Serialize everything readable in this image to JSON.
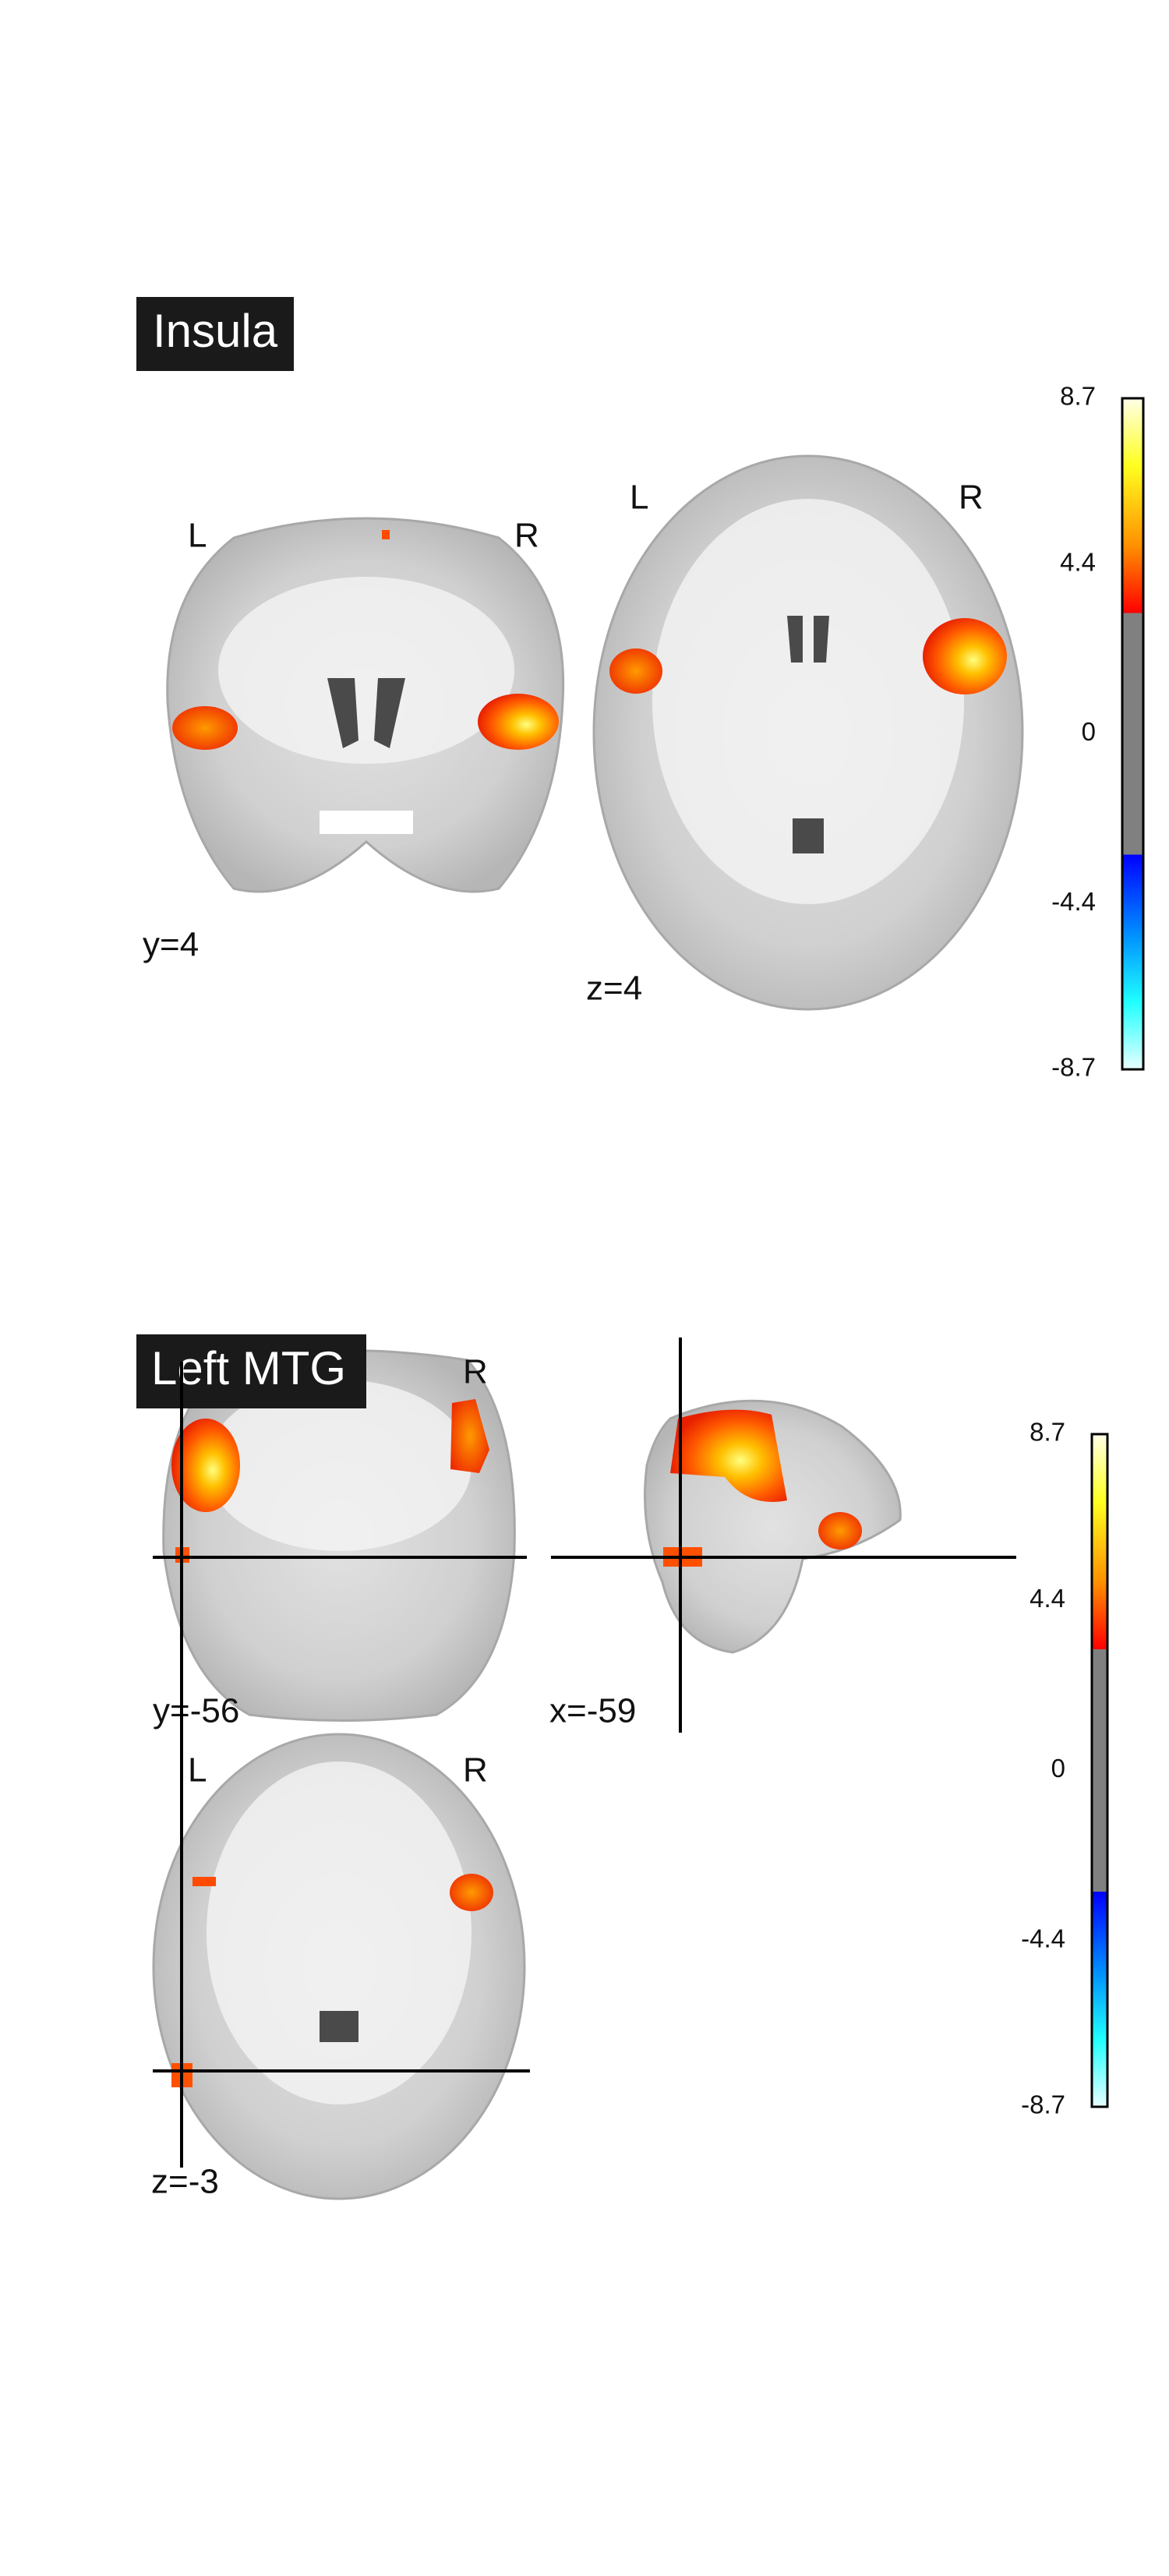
{
  "panels": [
    {
      "title": "Insula",
      "views": [
        {
          "left": "L",
          "right": "R",
          "coordinate": "y=4"
        },
        {
          "left": "L",
          "right": "R",
          "coordinate": "z=4"
        }
      ],
      "colorbar": {
        "ticks": [
          8.7,
          4.4,
          0,
          -4.4,
          -8.7
        ]
      }
    },
    {
      "title": "Left MTG",
      "views": [
        {
          "right": "R",
          "coordinate": "y=-56"
        },
        {
          "coordinate": "x=-59"
        },
        {
          "left": "L",
          "right": "R",
          "coordinate": "z=-3"
        }
      ],
      "colorbar": {
        "ticks": [
          8.7,
          4.4,
          0,
          -4.4,
          -8.7
        ]
      }
    }
  ]
}
